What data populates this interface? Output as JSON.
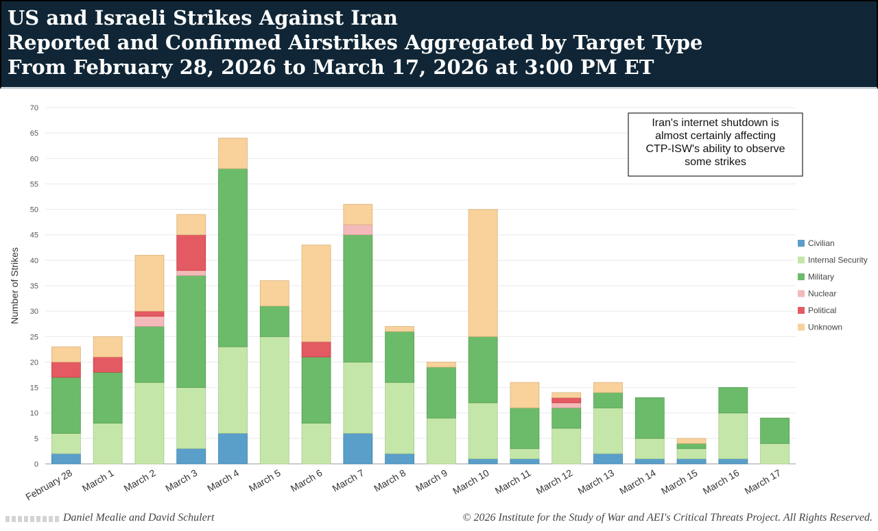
{
  "header": {
    "line1": "US and Israeli Strikes Against Iran",
    "line2": "Reported and Confirmed Airstrikes Aggregated by Target Type",
    "line3": "From February 28, 2026 to March 17, 2026 at 3:00 PM ET"
  },
  "annotation": {
    "lines": [
      "Iran's internet shutdown is",
      "almost certainly affecting",
      "CTP-ISW's ability to observe",
      "some strikes"
    ]
  },
  "footer": {
    "credit": "Daniel Mealie and David Schulert",
    "copyright": "© 2026 Institute for the Study of War and AEI's Critical Threats Project. All Rights Reserved."
  },
  "colors": {
    "Civilian": "#5a9fc9",
    "Internal Security": "#c5e6a9",
    "Military": "#6cbb6a",
    "Nuclear": "#f4b9b9",
    "Political": "#e45a62",
    "Unknown": "#f8d19b",
    "grid": "#e8e8e8",
    "header_bg": "#102636"
  },
  "chart_data": {
    "type": "bar",
    "stacked": true,
    "title": "US and Israeli Strikes Against Iran",
    "xlabel": "",
    "ylabel": "Number of Strikes",
    "ylim": [
      0,
      70
    ],
    "yticks": [
      0,
      5,
      10,
      15,
      20,
      25,
      30,
      35,
      40,
      45,
      50,
      55,
      60,
      65,
      70
    ],
    "grid": true,
    "legend_position": "right",
    "categories": [
      "February 28",
      "March 1",
      "March 2",
      "March 3",
      "March 4",
      "March 5",
      "March 6",
      "March 7",
      "March 8",
      "March 9",
      "March 10",
      "March 11",
      "March 12",
      "March 13",
      "March 14",
      "March 15",
      "March 16",
      "March 17"
    ],
    "series": [
      {
        "name": "Civilian",
        "values": [
          2,
          0,
          0,
          3,
          6,
          0,
          0,
          6,
          2,
          0,
          1,
          1,
          0,
          2,
          1,
          1,
          1,
          0
        ]
      },
      {
        "name": "Internal Security",
        "values": [
          4,
          8,
          16,
          12,
          17,
          25,
          8,
          14,
          14,
          9,
          11,
          2,
          7,
          9,
          4,
          2,
          9,
          4
        ]
      },
      {
        "name": "Military",
        "values": [
          11,
          10,
          11,
          22,
          35,
          6,
          13,
          25,
          10,
          10,
          13,
          8,
          4,
          3,
          8,
          1,
          5,
          5
        ]
      },
      {
        "name": "Nuclear",
        "values": [
          0,
          0,
          2,
          1,
          0,
          0,
          0,
          2,
          0,
          0,
          0,
          0,
          1,
          0,
          0,
          0,
          0,
          0
        ]
      },
      {
        "name": "Political",
        "values": [
          3,
          3,
          1,
          7,
          0,
          0,
          3,
          0,
          0,
          0,
          0,
          0,
          1,
          0,
          0,
          0,
          0,
          0
        ]
      },
      {
        "name": "Unknown",
        "values": [
          3,
          4,
          11,
          4,
          6,
          5,
          19,
          4,
          1,
          1,
          25,
          5,
          1,
          2,
          0,
          1,
          0,
          0
        ]
      }
    ]
  }
}
